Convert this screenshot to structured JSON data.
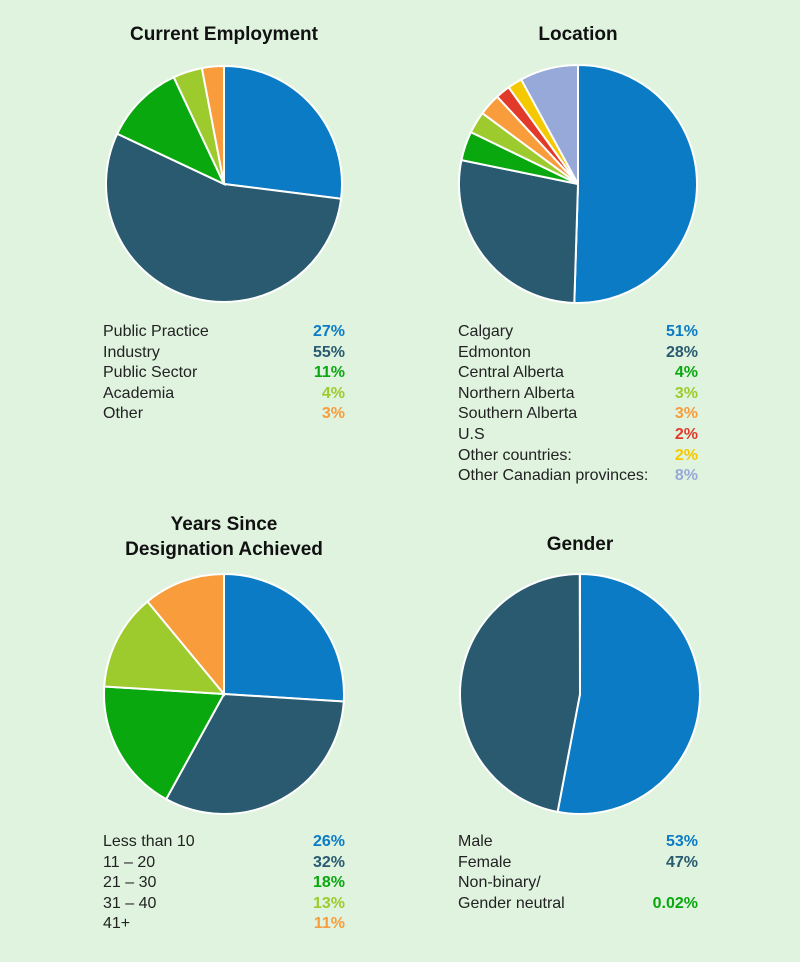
{
  "chart_data": [
    {
      "type": "pie",
      "title": "Current Employment",
      "categories": [
        "Public Practice",
        "Industry",
        "Public Sector",
        "Academia",
        "Other"
      ],
      "values": [
        27,
        55,
        11,
        4,
        3
      ],
      "value_labels": [
        "27%",
        "55%",
        "11%",
        "4%",
        "3%"
      ],
      "colors": [
        "#0a7bc4",
        "#295a70",
        "#0aa80f",
        "#9dcb2d",
        "#f99c3b"
      ]
    },
    {
      "type": "pie",
      "title": "Location",
      "categories": [
        "Calgary",
        "Edmonton",
        "Central Alberta",
        "Northern Alberta",
        "Southern Alberta",
        "U.S",
        "Other countries:",
        "Other Canadian provinces:"
      ],
      "values": [
        51,
        28,
        4,
        3,
        3,
        2,
        2,
        8
      ],
      "value_labels": [
        "51%",
        "28%",
        "4%",
        "3%",
        "3%",
        "2%",
        "2%",
        "8%"
      ],
      "colors": [
        "#0a7bc4",
        "#295a70",
        "#0aa80f",
        "#9dcb2d",
        "#f99c3b",
        "#e23a2a",
        "#f5c900",
        "#97a9d9"
      ]
    },
    {
      "type": "pie",
      "title": "Years Since\nDesignation Achieved",
      "categories": [
        "Less than 10",
        "11 – 20",
        "21 – 30",
        "31 – 40",
        "41+"
      ],
      "values": [
        26,
        32,
        18,
        13,
        11
      ],
      "value_labels": [
        "26%",
        "32%",
        "18%",
        "13%",
        "11%"
      ],
      "colors": [
        "#0a7bc4",
        "#295a70",
        "#0aa80f",
        "#9dcb2d",
        "#f99c3b"
      ]
    },
    {
      "type": "pie",
      "title": "Gender",
      "categories": [
        "Male",
        "Female",
        "Non-binary/\nGender neutral"
      ],
      "values": [
        53,
        47,
        0.02
      ],
      "value_labels": [
        "53%",
        "47%",
        "0.02%"
      ],
      "colors": [
        "#0a7bc4",
        "#295a70",
        "#0aa80f"
      ]
    }
  ]
}
